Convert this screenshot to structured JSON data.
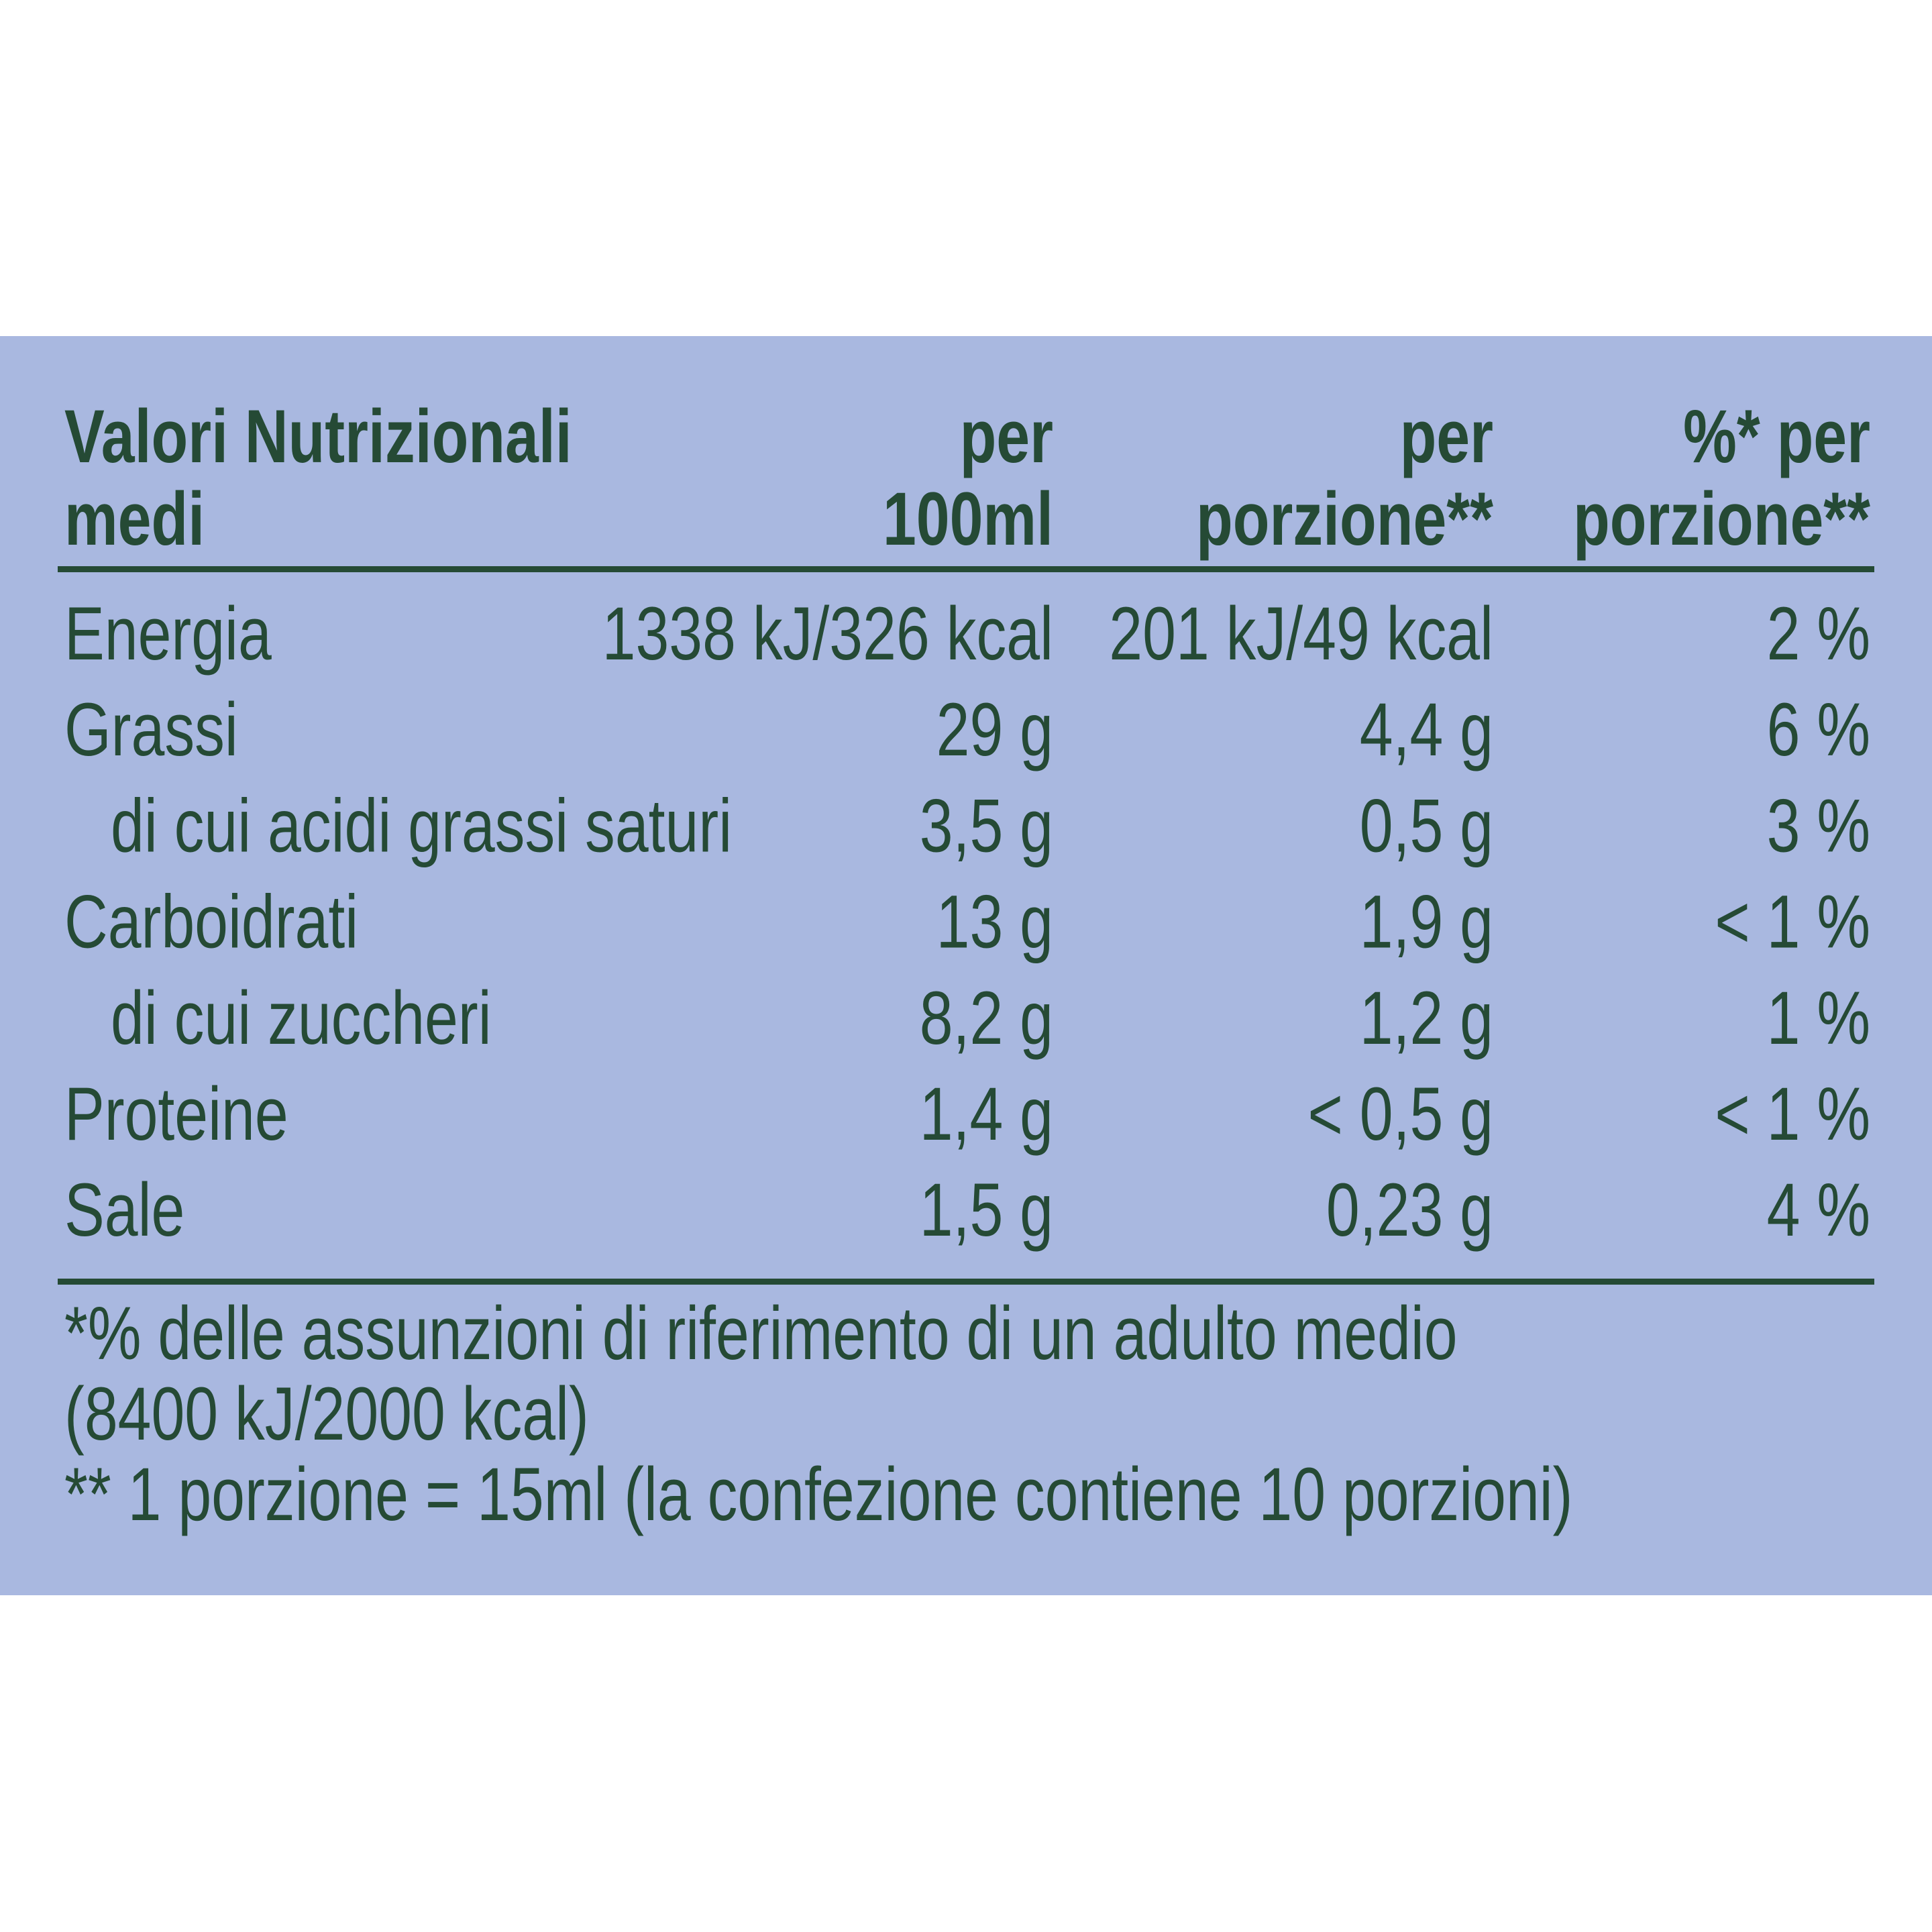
{
  "table": {
    "header": [
      [
        "Valori Nutrizionali",
        "medi"
      ],
      [
        "per",
        "100ml"
      ],
      [
        "per",
        "porzione**"
      ],
      [
        "%* per",
        "porzione**"
      ]
    ],
    "rows": [
      [
        "Energia",
        "1338 kJ/326 kcal",
        "201 kJ/49 kcal",
        "2 %"
      ],
      [
        "Grassi",
        "29 g",
        "4,4 g",
        "6 %"
      ],
      [
        "di cui acidi grassi saturi",
        "3,5 g",
        "0,5 g",
        "3 %"
      ],
      [
        "Carboidrati",
        "13 g",
        "1,9 g",
        "< 1 %"
      ],
      [
        "di cui zuccheri",
        "8,2 g",
        "1,2 g",
        "1 %"
      ],
      [
        "Proteine",
        "1,4 g",
        "< 0,5 g",
        "< 1 %"
      ],
      [
        "Sale",
        "1,5 g",
        "0,23 g",
        "4 %"
      ]
    ],
    "footnotes": [
      "*% delle assunzioni di riferimento di un adulto medio",
      "(8400 kJ/2000 kcal)",
      "** 1 porzione = 15ml (la confezione contiene 10 porzioni)"
    ]
  }
}
